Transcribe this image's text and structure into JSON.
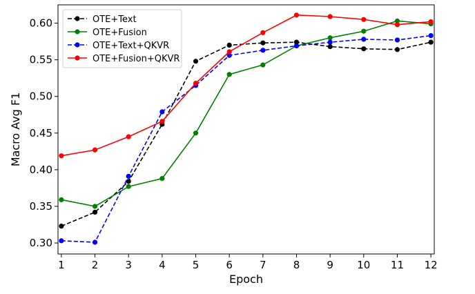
{
  "chart_data": {
    "type": "line",
    "xlabel": "Epoch",
    "ylabel": "Macro Avg F1",
    "x": [
      1,
      2,
      3,
      4,
      5,
      6,
      7,
      8,
      9,
      10,
      11,
      12
    ],
    "xlim": [
      0.9,
      12.1
    ],
    "ylim": [
      0.285,
      0.625
    ],
    "yticks": [
      0.3,
      0.35,
      0.4,
      0.45,
      0.5,
      0.55,
      0.6
    ],
    "ytick_labels": [
      "0.30",
      "0.35",
      "0.40",
      "0.45",
      "0.50",
      "0.55",
      "0.60"
    ],
    "xticks": [
      1,
      2,
      3,
      4,
      5,
      6,
      7,
      8,
      9,
      10,
      11,
      12
    ],
    "xtick_labels": [
      "1",
      "2",
      "3",
      "4",
      "5",
      "6",
      "7",
      "8",
      "9",
      "10",
      "11",
      "12"
    ],
    "grid": false,
    "legend_position": "top-left",
    "series": [
      {
        "name": "OTE+Text",
        "color": "#000000",
        "line_style": "dashed",
        "values": [
          0.323,
          0.342,
          0.384,
          0.462,
          0.548,
          0.57,
          0.573,
          0.574,
          0.568,
          0.565,
          0.564,
          0.574
        ]
      },
      {
        "name": "OTE+Fusion",
        "color": "#008000",
        "line_style": "solid",
        "values": [
          0.359,
          0.35,
          0.377,
          0.388,
          0.45,
          0.53,
          0.543,
          0.569,
          0.58,
          0.589,
          0.603,
          0.599
        ]
      },
      {
        "name": "OTE+Text+QKVR",
        "color": "#0000ff",
        "line_style": "dashed",
        "values": [
          0.303,
          0.301,
          0.391,
          0.479,
          0.515,
          0.556,
          0.563,
          0.569,
          0.574,
          0.578,
          0.577,
          0.583
        ]
      },
      {
        "name": "OTE+Fusion+QKVR",
        "color": "#ff0000",
        "line_style": "solid",
        "values": [
          0.419,
          0.427,
          0.445,
          0.466,
          0.518,
          0.561,
          0.587,
          0.611,
          0.609,
          0.605,
          0.598,
          0.602
        ]
      }
    ]
  }
}
